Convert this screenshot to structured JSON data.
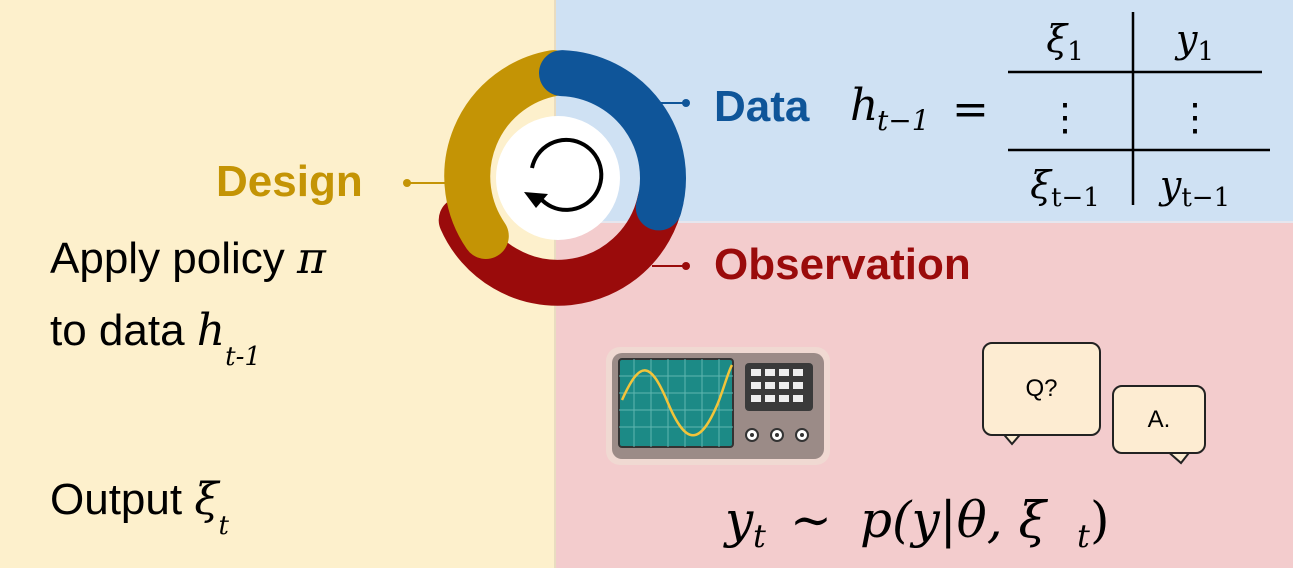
{
  "stages": {
    "design": "Design",
    "data": "Data",
    "observation": "Observation"
  },
  "design_panel": {
    "policy_prefix": "Apply policy ",
    "policy_symbol": "π",
    "data_prefix": "to data ",
    "data_symbol": "h",
    "data_subscript": "t-1",
    "output_prefix": "Output ",
    "output_symbol": "ξ",
    "output_subscript": "t"
  },
  "data_panel": {
    "history_lhs": "h",
    "history_lhs_sub": "t−1",
    "equals": "=",
    "table_rows": [
      {
        "xi": "ξ",
        "xi_sub": "1",
        "y": "y",
        "y_sub": "1"
      },
      {
        "xi": "⋮",
        "xi_sub": "",
        "y": "⋮",
        "y_sub": ""
      },
      {
        "xi": "ξ",
        "xi_sub": "t−1",
        "y": "y",
        "y_sub": "t−1"
      }
    ]
  },
  "observation_panel": {
    "bubble_question": "Q?",
    "bubble_answer": "A.",
    "equation": {
      "y": "y",
      "y_sub": "t",
      "sim": "∼",
      "rhs_p": "p(y|θ, ξ",
      "rhs_sub": "t",
      "rhs_close": ")"
    }
  },
  "colors": {
    "design": "#c49405",
    "data": "#0f5599",
    "observation": "#9a0b0b",
    "design_bg": "#fdf0cc",
    "data_bg": "#cfe1f3",
    "observation_bg": "#f3cccd"
  },
  "icons": [
    "cycle-arrow-icon",
    "oscilloscope-icon",
    "speech-bubble-icon"
  ]
}
